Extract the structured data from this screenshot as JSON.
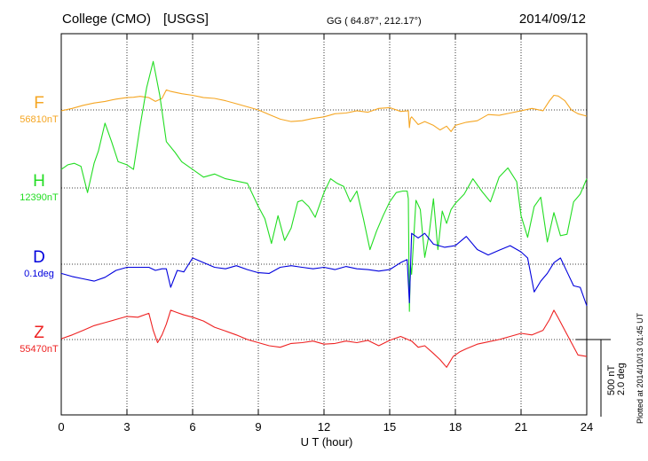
{
  "header": {
    "station": "College (CMO)",
    "source": "[USGS]",
    "coords": "GG ( 64.87°, 212.17°)",
    "date": "2014/09/12"
  },
  "footer": {
    "plotted": "Plotted at 2014/10/13 01:45 UT"
  },
  "scale": {
    "nt": "500 nT",
    "deg": "2.0 deg"
  },
  "chart_data": {
    "type": "line",
    "xlabel": "U T (hour)",
    "xlim": [
      0,
      24
    ],
    "xticks": [
      0,
      3,
      6,
      9,
      12,
      15,
      18,
      21,
      24
    ],
    "xtick_labels": [
      "0",
      "3",
      "6",
      "9",
      "12",
      "15",
      "18",
      "21",
      "24"
    ],
    "grid": true,
    "grid_style": "dotted",
    "units_per_div_nT": 500,
    "series": [
      {
        "name": "F",
        "baseline": "56810nT",
        "color": "#f5a623",
        "x": [
          0,
          0.5,
          1,
          1.5,
          2,
          2.5,
          3,
          3.3,
          3.6,
          4,
          4.3,
          4.6,
          4.8,
          5,
          5.5,
          6,
          6.5,
          7,
          7.5,
          8,
          8.5,
          9,
          9.5,
          10,
          10.5,
          11,
          11.5,
          12,
          12.5,
          13,
          13.5,
          14,
          14.5,
          15,
          15.5,
          15.85,
          15.9,
          15.95,
          16,
          16.3,
          16.6,
          17,
          17.3,
          17.6,
          17.8,
          18,
          18.5,
          19,
          19.5,
          20,
          20.5,
          21,
          21.5,
          22,
          22.3,
          22.5,
          22.7,
          23,
          23.3,
          23.6,
          24
        ],
        "y": [
          -5,
          10,
          30,
          45,
          55,
          70,
          80,
          82,
          88,
          80,
          55,
          75,
          130,
          120,
          105,
          95,
          80,
          75,
          60,
          40,
          20,
          0,
          -30,
          -60,
          -75,
          -70,
          -55,
          -45,
          -25,
          -20,
          -5,
          -15,
          10,
          15,
          -10,
          -5,
          -115,
          -55,
          -45,
          -95,
          -75,
          -100,
          -130,
          -105,
          -140,
          -100,
          -80,
          -70,
          -30,
          -35,
          -20,
          -5,
          10,
          -5,
          60,
          95,
          90,
          60,
          0,
          -25,
          -40
        ]
      },
      {
        "name": "H",
        "baseline": "12390nT",
        "color": "#22dd22",
        "x": [
          0,
          0.3,
          0.6,
          0.9,
          1.2,
          1.5,
          1.7,
          2,
          2.3,
          2.6,
          3,
          3.3,
          3.6,
          3.9,
          4.2,
          4.5,
          4.8,
          5.2,
          5.5,
          6,
          6.5,
          7,
          7.5,
          8,
          8.5,
          9,
          9.3,
          9.6,
          9.9,
          10.2,
          10.5,
          10.8,
          11,
          11.3,
          11.6,
          12,
          12.3,
          12.6,
          12.9,
          13.2,
          13.5,
          13.8,
          14.1,
          14.4,
          14.7,
          15,
          15.3,
          15.6,
          15.8,
          15.85,
          15.9,
          15.95,
          16,
          16.2,
          16.4,
          16.6,
          16.8,
          17,
          17.2,
          17.4,
          17.6,
          17.8,
          18,
          18.4,
          18.8,
          19.2,
          19.6,
          20,
          20.4,
          20.8,
          21,
          21.3,
          21.6,
          21.9,
          22.2,
          22.5,
          22.8,
          23.1,
          23.4,
          23.7,
          24
        ],
        "y": [
          120,
          150,
          160,
          140,
          -30,
          160,
          240,
          420,
          300,
          170,
          150,
          120,
          400,
          650,
          820,
          600,
          300,
          230,
          170,
          120,
          70,
          90,
          60,
          45,
          30,
          -120,
          -200,
          -360,
          -180,
          -340,
          -260,
          -90,
          -80,
          -120,
          -190,
          -30,
          60,
          30,
          10,
          -90,
          -20,
          -200,
          -400,
          -280,
          -180,
          -90,
          -30,
          -20,
          -20,
          -70,
          -800,
          -500,
          -560,
          -80,
          -140,
          -450,
          -300,
          -70,
          -400,
          -150,
          -230,
          -140,
          -100,
          -40,
          60,
          -20,
          -90,
          70,
          130,
          40,
          -180,
          -320,
          -120,
          -60,
          -350,
          -160,
          -310,
          -300,
          -90,
          -40,
          60
        ]
      },
      {
        "name": "D",
        "baseline": "0.1deg",
        "color": "#0000dd",
        "x": [
          0,
          0.5,
          1,
          1.5,
          2,
          2.5,
          3,
          3.5,
          4,
          4.3,
          4.6,
          4.8,
          5,
          5.3,
          5.6,
          6,
          6.5,
          7,
          7.5,
          8,
          8.5,
          9,
          9.5,
          10,
          10.5,
          11,
          11.5,
          12,
          12.5,
          13,
          13.5,
          14,
          14.5,
          15,
          15.5,
          15.8,
          15.85,
          15.9,
          16,
          16.3,
          16.6,
          17,
          17.5,
          18,
          18.5,
          19,
          19.5,
          20,
          20.5,
          21,
          21.3,
          21.6,
          21.9,
          22.2,
          22.5,
          22.8,
          23.1,
          23.4,
          23.7,
          24
        ],
        "y": [
          -60,
          -80,
          -95,
          -110,
          -85,
          -40,
          -20,
          -20,
          -20,
          -40,
          -30,
          -30,
          -150,
          -40,
          -50,
          40,
          10,
          -20,
          -30,
          -10,
          -35,
          -55,
          -60,
          -20,
          -10,
          -20,
          -30,
          -20,
          -35,
          -15,
          -30,
          -35,
          -45,
          -35,
          10,
          30,
          -120,
          -250,
          200,
          170,
          200,
          130,
          110,
          120,
          180,
          95,
          60,
          90,
          120,
          80,
          40,
          -180,
          -110,
          -60,
          10,
          40,
          -50,
          -140,
          -150,
          -270
        ]
      },
      {
        "name": "Z",
        "baseline": "55470nT",
        "color": "#ee2222",
        "x": [
          0,
          0.5,
          1,
          1.5,
          2,
          2.5,
          3,
          3.5,
          4,
          4.2,
          4.4,
          4.6,
          4.8,
          5,
          5.3,
          5.6,
          6,
          6.5,
          7,
          7.5,
          8,
          8.5,
          9,
          9.5,
          10,
          10.5,
          11,
          11.5,
          12,
          12.5,
          13,
          13.5,
          14,
          14.5,
          15,
          15.5,
          16,
          16.3,
          16.6,
          17,
          17.3,
          17.6,
          17.9,
          18.2,
          18.5,
          19,
          19.5,
          20,
          20.5,
          21,
          21.5,
          22,
          22.3,
          22.5,
          22.7,
          23,
          23.3,
          23.6,
          24
        ],
        "y": [
          5,
          30,
          60,
          90,
          110,
          130,
          150,
          145,
          170,
          60,
          -20,
          30,
          100,
          190,
          175,
          160,
          145,
          120,
          80,
          55,
          30,
          0,
          -20,
          -40,
          -50,
          -25,
          -20,
          -10,
          -30,
          -25,
          -10,
          -20,
          -5,
          -40,
          -5,
          20,
          -10,
          -50,
          -40,
          -90,
          -130,
          -180,
          -110,
          -80,
          -60,
          -30,
          -15,
          0,
          20,
          40,
          30,
          60,
          130,
          190,
          140,
          60,
          -20,
          -100,
          -110
        ]
      }
    ]
  }
}
